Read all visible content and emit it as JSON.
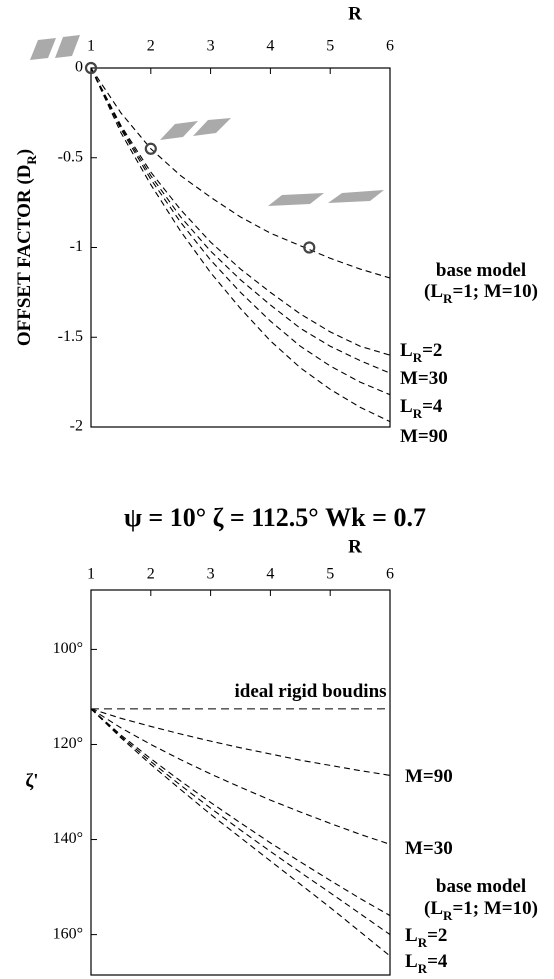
{
  "figure_title": "ψ = 10°   ζ = 112.5°   Wk = 0.7",
  "chart_data": [
    {
      "type": "line",
      "x_label": "R",
      "y_label": [
        "OFFSET FACTOR (D",
        "R",
        ")"
      ],
      "x": [
        1,
        1.5,
        2,
        2.5,
        3,
        3.5,
        4,
        4.5,
        5,
        5.5,
        6
      ],
      "xlim": [
        1,
        6
      ],
      "xticks": [
        1,
        2,
        3,
        4,
        5,
        6
      ],
      "ylim": [
        -2,
        0
      ],
      "yticks": [
        0,
        -0.5,
        -1,
        -1.5,
        -2
      ],
      "series": [
        {
          "name": [
            [
              "base model"
            ],
            [
              "(L",
              "R",
              "=1; M=10)"
            ]
          ],
          "color": "#000",
          "values": [
            0,
            -0.25,
            -0.45,
            -0.6,
            -0.72,
            -0.83,
            -0.92,
            -0.99,
            -1.06,
            -1.12,
            -1.17
          ]
        },
        {
          "name": [
            [
              "L",
              "R",
              "=2"
            ]
          ],
          "color": "#000",
          "values": [
            0,
            -0.32,
            -0.58,
            -0.79,
            -0.97,
            -1.12,
            -1.25,
            -1.37,
            -1.47,
            -1.55,
            -1.6
          ]
        },
        {
          "name": [
            [
              "M=30"
            ]
          ],
          "color": "#000",
          "values": [
            0,
            -0.33,
            -0.6,
            -0.83,
            -1.02,
            -1.18,
            -1.32,
            -1.45,
            -1.55,
            -1.63,
            -1.7
          ]
        },
        {
          "name": [
            [
              "L",
              "R",
              "=4"
            ]
          ],
          "color": "#000",
          "values": [
            0,
            -0.34,
            -0.62,
            -0.86,
            -1.07,
            -1.25,
            -1.41,
            -1.55,
            -1.66,
            -1.75,
            -1.82
          ]
        },
        {
          "name": [
            [
              "M=90"
            ]
          ],
          "color": "#000",
          "values": [
            0,
            -0.36,
            -0.65,
            -0.91,
            -1.14,
            -1.34,
            -1.52,
            -1.67,
            -1.79,
            -1.89,
            -1.97
          ]
        }
      ],
      "points": {
        "x": [
          1,
          2,
          4.65
        ],
        "values": [
          0,
          -0.45,
          -1.0
        ],
        "color": "#444"
      }
    },
    {
      "type": "line",
      "x_label": "R",
      "y_label": [
        "ζ'"
      ],
      "y_inverted": true,
      "x": [
        1,
        1.5,
        2,
        2.5,
        3,
        3.5,
        4,
        4.5,
        5,
        5.5,
        6
      ],
      "xlim": [
        1,
        6
      ],
      "xticks": [
        1,
        2,
        3,
        4,
        5,
        6
      ],
      "ylim": [
        87.5,
        168.5
      ],
      "yticks": [
        {
          "value": 100,
          "label": "100°"
        },
        {
          "value": 120,
          "label": "120°"
        },
        {
          "value": 140,
          "label": "140°"
        },
        {
          "value": 160,
          "label": "160°"
        }
      ],
      "reference": {
        "label": "ideal rigid boudins",
        "value": 112.5
      },
      "series": [
        {
          "name": [
            [
              "M=90"
            ]
          ],
          "color": "#000",
          "values": [
            112.5,
            114.5,
            116.2,
            117.8,
            119.3,
            120.7,
            122,
            123.3,
            124.4,
            125.5,
            126.5
          ]
        },
        {
          "name": [
            [
              "M=30"
            ]
          ],
          "color": "#000",
          "values": [
            112.5,
            116.5,
            120,
            123.2,
            126.2,
            129,
            131.7,
            134.2,
            136.6,
            138.9,
            141
          ]
        },
        {
          "name": [
            [
              "base model"
            ],
            [
              "(L",
              "R",
              "=1; M=10)"
            ]
          ],
          "color": "#000",
          "values": [
            112.5,
            118,
            123,
            127.7,
            132.2,
            136.5,
            140.7,
            144.7,
            148.6,
            152.4,
            156
          ]
        },
        {
          "name": [
            [
              "L",
              "R",
              "=2"
            ]
          ],
          "color": "#000",
          "values": [
            112.5,
            118.3,
            123.6,
            128.6,
            133.4,
            138,
            142.5,
            146.9,
            151.2,
            155.6,
            160
          ]
        },
        {
          "name": [
            [
              "L",
              "R",
              "=4"
            ]
          ],
          "color": "#000",
          "values": [
            112.5,
            118.6,
            124.2,
            129.5,
            134.7,
            139.6,
            144.5,
            149.4,
            154.3,
            159.4,
            164.5
          ]
        }
      ]
    }
  ]
}
